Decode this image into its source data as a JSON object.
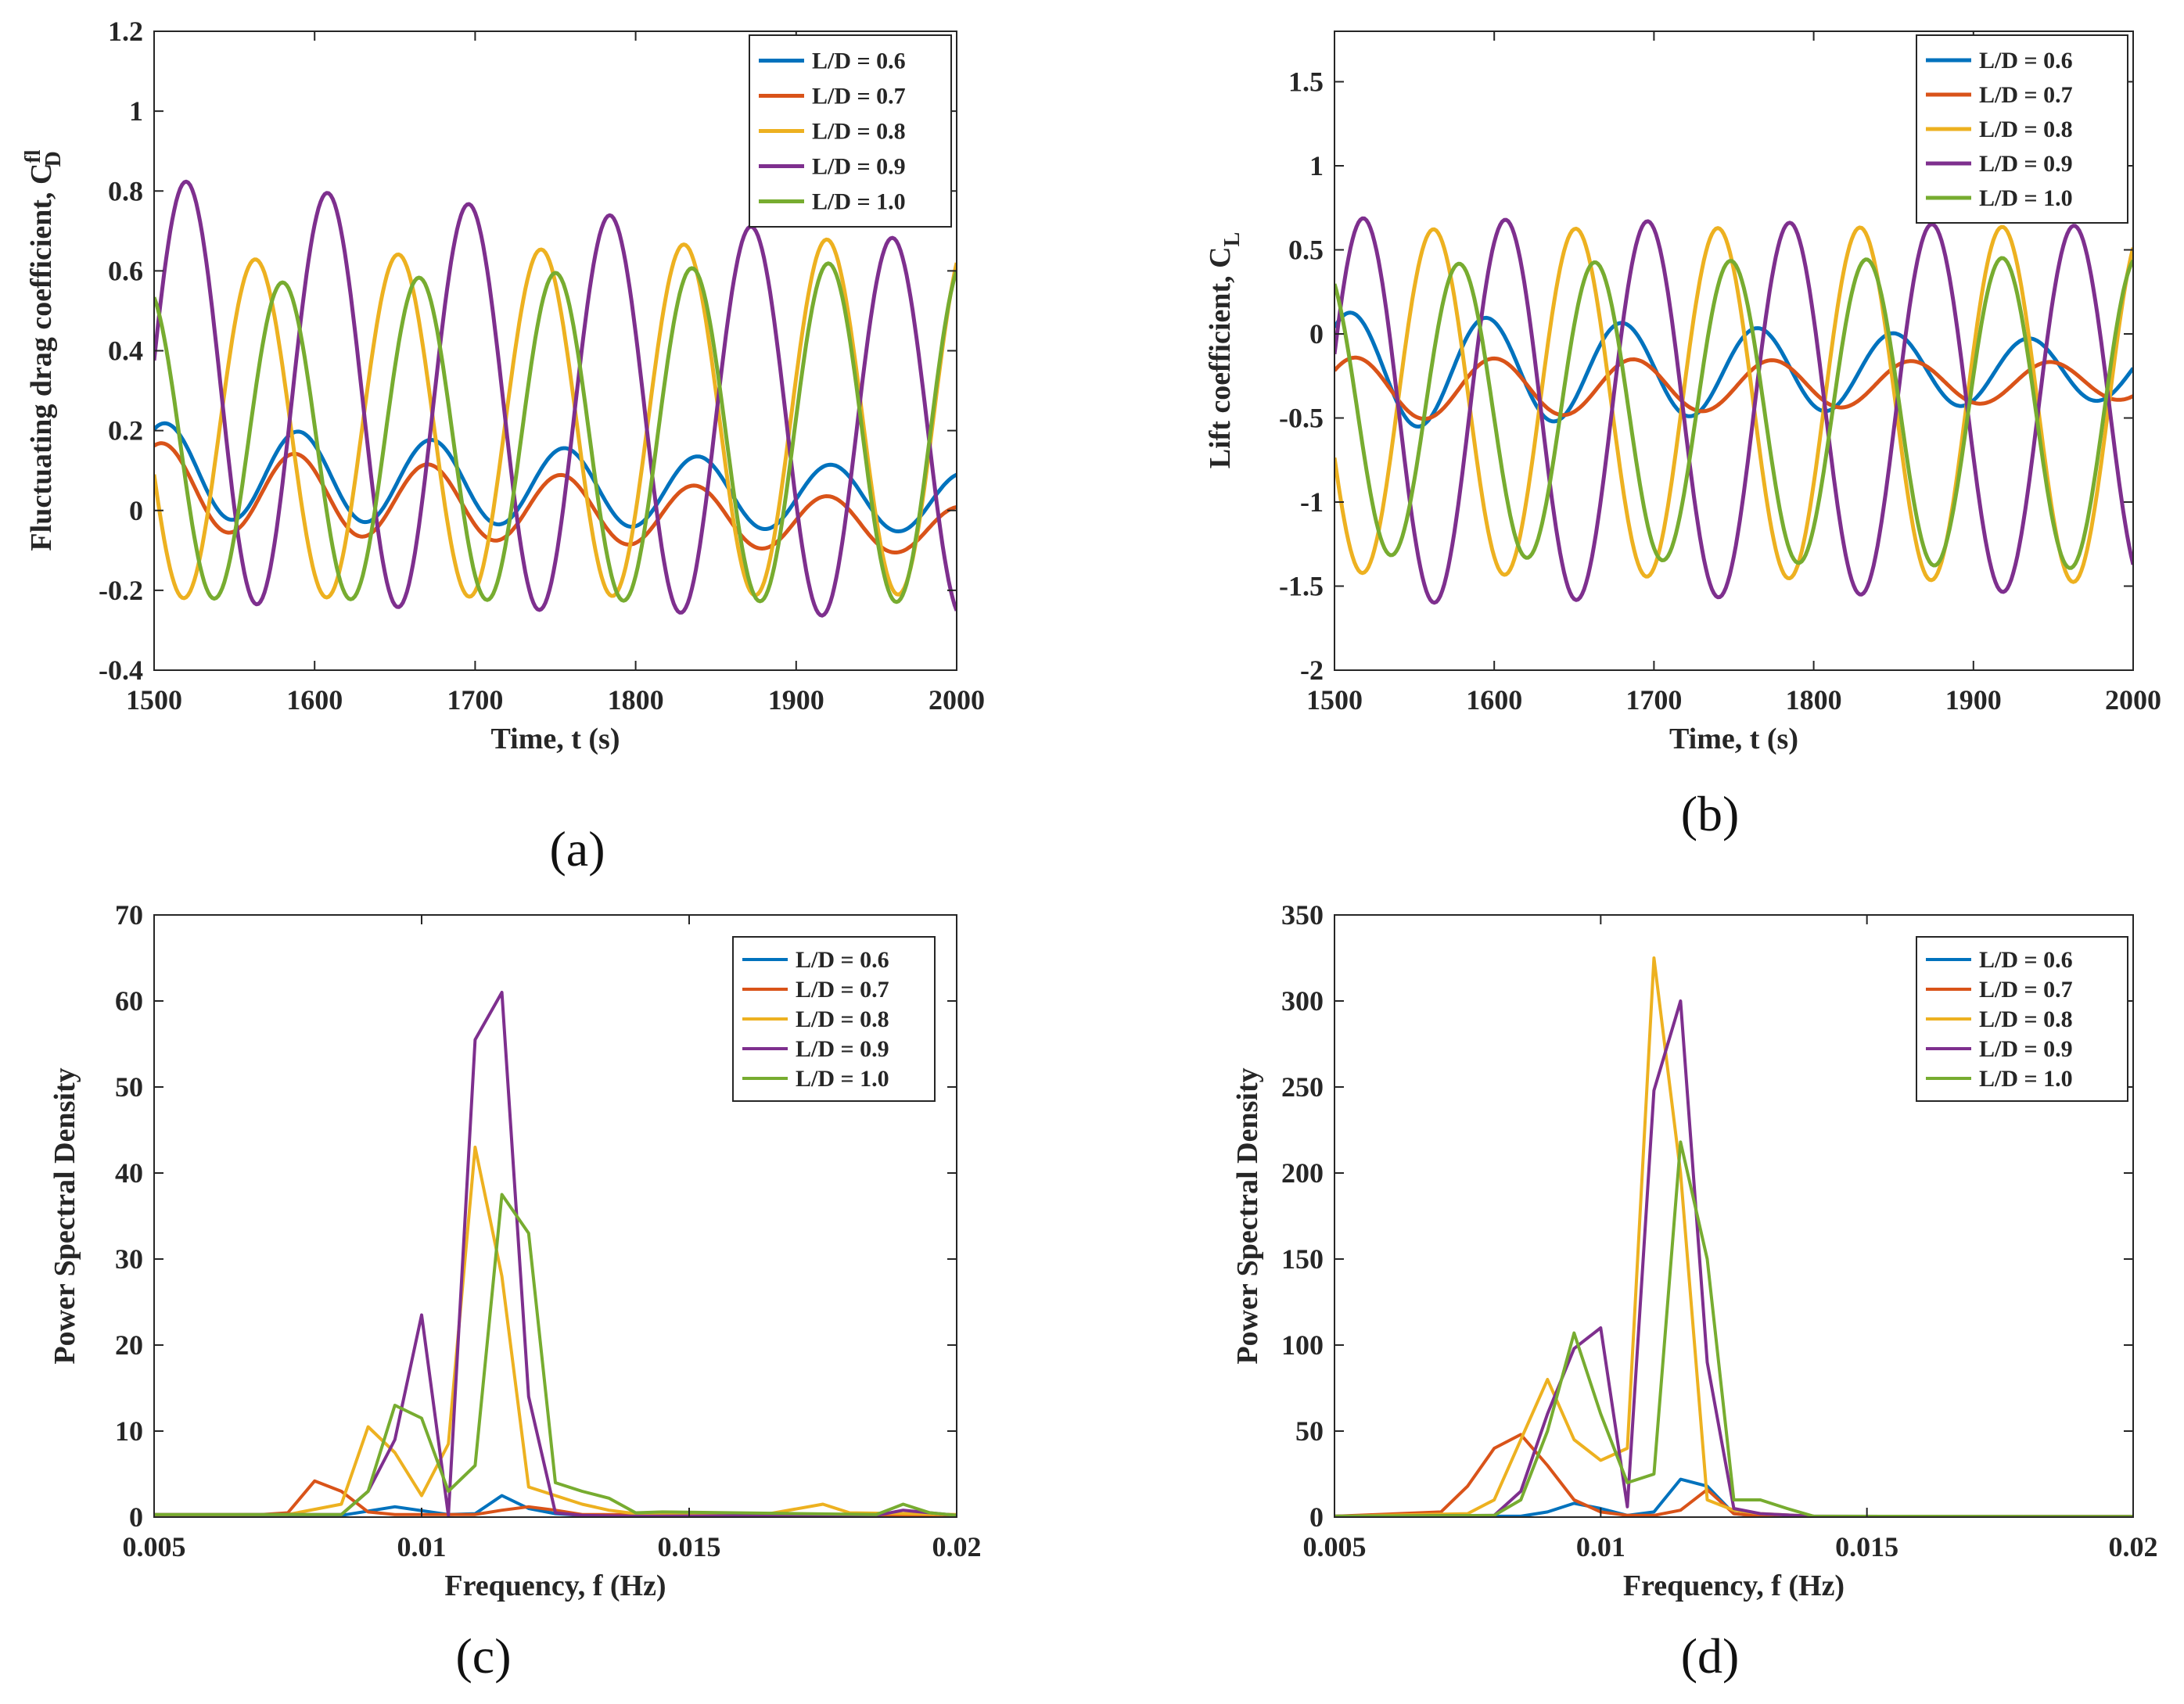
{
  "figure": {
    "series_names": [
      "L/D = 0.6",
      "L/D = 0.7",
      "L/D = 0.8",
      "L/D = 0.9",
      "L/D = 1.0"
    ],
    "series_colors": [
      "#0072BD",
      "#D95319",
      "#EDB120",
      "#7E2F8E",
      "#77AC30"
    ]
  },
  "chart_data": [
    {
      "panel_label": "(a)",
      "type": "line",
      "xlabel": "Time, t (s)",
      "ylabel_main": "Fluctuating drag coefficient, C",
      "ylabel_sup": "fl",
      "ylabel_sub": "D",
      "xlim": [
        1500,
        2000
      ],
      "ylim": [
        -0.4,
        1.2
      ],
      "xticks": [
        1500,
        1600,
        1700,
        1800,
        1900,
        2000
      ],
      "yticks": [
        -0.4,
        -0.2,
        0,
        0.2,
        0.4,
        0.6,
        0.8,
        1,
        1.2
      ],
      "yticklabels": [
        "-0.4",
        "-0.2",
        "0",
        "0.2",
        "0.4",
        "0.6",
        "0.8",
        "1",
        "1.2"
      ],
      "legend_location": "top-right",
      "series": [
        {
          "name": "L/D = 0.6",
          "sinusoid": {
            "period": 83,
            "phase_t": 1507,
            "mean_start": 0.1,
            "mean_end": 0.02,
            "amp_start": 0.12,
            "amp_end": 0.075
          }
        },
        {
          "name": "L/D = 0.7",
          "sinusoid": {
            "period": 83,
            "phase_t": 1505,
            "mean_start": 0.06,
            "mean_end": -0.05,
            "amp_start": 0.11,
            "amp_end": 0.06
          }
        },
        {
          "name": "L/D = 0.8",
          "sinusoid": {
            "period": 89,
            "phase_t": 1563,
            "mean_start": 0.2,
            "mean_end": 0.24,
            "amp_start": 0.42,
            "amp_end": 0.45
          }
        },
        {
          "name": "L/D = 0.9",
          "sinusoid": {
            "period": 88,
            "phase_t": 1520,
            "mean_start": 0.3,
            "mean_end": 0.2,
            "amp_start": 0.53,
            "amp_end": 0.47
          }
        },
        {
          "name": "L/D = 1.0",
          "sinusoid": {
            "period": 85,
            "phase_t": 1580,
            "mean_start": 0.17,
            "mean_end": 0.2,
            "amp_start": 0.39,
            "amp_end": 0.43
          }
        }
      ]
    },
    {
      "panel_label": "(b)",
      "type": "line",
      "xlabel": "Time, t (s)",
      "ylabel_main": "Lift coefficient, C",
      "ylabel_sup": "",
      "ylabel_sub": "L",
      "xlim": [
        1500,
        2000
      ],
      "ylim": [
        -2,
        1.8
      ],
      "xticks": [
        1500,
        1600,
        1700,
        1800,
        1900,
        2000
      ],
      "yticks": [
        -2,
        -1.5,
        -1,
        -0.5,
        0,
        0.5,
        1,
        1.5
      ],
      "yticklabels": [
        "-2",
        "-1.5",
        "-1",
        "-0.5",
        "0",
        "0.5",
        "1",
        "1.5"
      ],
      "legend_location": "top-right",
      "series": [
        {
          "name": "L/D = 0.6",
          "sinusoid": {
            "period": 85,
            "phase_t": 1510,
            "mean_start": -0.22,
            "mean_end": -0.22,
            "amp_start": 0.35,
            "amp_end": 0.17
          }
        },
        {
          "name": "L/D = 0.7",
          "sinusoid": {
            "period": 87,
            "phase_t": 1513,
            "mean_start": -0.33,
            "mean_end": -0.28,
            "amp_start": 0.19,
            "amp_end": 0.11
          }
        },
        {
          "name": "L/D = 0.8",
          "sinusoid": {
            "period": 89,
            "phase_t": 1562,
            "mean_start": -0.4,
            "mean_end": -0.42,
            "amp_start": 1.02,
            "amp_end": 1.06
          }
        },
        {
          "name": "L/D = 0.9",
          "sinusoid": {
            "period": 89,
            "phase_t": 1518,
            "mean_start": -0.46,
            "mean_end": -0.44,
            "amp_start": 1.15,
            "amp_end": 1.08
          }
        },
        {
          "name": "L/D = 1.0",
          "sinusoid": {
            "period": 85,
            "phase_t": 1578,
            "mean_start": -0.45,
            "mean_end": -0.47,
            "amp_start": 0.86,
            "amp_end": 0.93
          }
        }
      ]
    },
    {
      "panel_label": "(c)",
      "type": "line",
      "xlabel": "Frequency, f (Hz)",
      "ylabel_main": "Power Spectral Density",
      "ylabel_sup": "",
      "ylabel_sub": "",
      "xlim": [
        0.005,
        0.02
      ],
      "ylim": [
        0,
        70
      ],
      "xticks": [
        0.005,
        0.01,
        0.015,
        0.02
      ],
      "xticklabels": [
        "0.005",
        "0.01",
        "0.015",
        "0.02"
      ],
      "yticks": [
        0,
        10,
        20,
        30,
        40,
        50,
        60,
        70
      ],
      "yticklabels": [
        "0",
        "10",
        "20",
        "30",
        "40",
        "50",
        "60",
        "70"
      ],
      "legend_location": "top-right",
      "series": [
        {
          "name": "L/D = 0.6",
          "x": [
            0.005,
            0.0085,
            0.0095,
            0.0105,
            0.011,
            0.0115,
            0.012,
            0.0125,
            0.013,
            0.02
          ],
          "y": [
            0.2,
            0.2,
            1.2,
            0.3,
            0.4,
            2.5,
            1.0,
            0.4,
            0.2,
            0.2
          ]
        },
        {
          "name": "L/D = 0.7",
          "x": [
            0.005,
            0.007,
            0.0075,
            0.008,
            0.0085,
            0.009,
            0.0095,
            0.01,
            0.0105,
            0.011,
            0.0115,
            0.012,
            0.0125,
            0.013,
            0.02
          ],
          "y": [
            0.2,
            0.3,
            0.5,
            4.2,
            3.0,
            0.6,
            0.3,
            0.3,
            0.3,
            0.3,
            0.8,
            1.2,
            0.8,
            0.3,
            0.2
          ]
        },
        {
          "name": "L/D = 0.8",
          "x": [
            0.005,
            0.0075,
            0.0085,
            0.009,
            0.0095,
            0.01,
            0.0105,
            0.011,
            0.0115,
            0.012,
            0.0125,
            0.013,
            0.0135,
            0.014,
            0.0165,
            0.0175,
            0.018,
            0.02
          ],
          "y": [
            0.3,
            0.3,
            1.5,
            10.5,
            7.5,
            2.5,
            8.5,
            43.0,
            28.0,
            3.5,
            2.5,
            1.5,
            0.8,
            0.4,
            0.4,
            1.5,
            0.5,
            0.3
          ]
        },
        {
          "name": "L/D = 0.9",
          "x": [
            0.005,
            0.0085,
            0.009,
            0.0095,
            0.01,
            0.0105,
            0.011,
            0.0115,
            0.012,
            0.0125,
            0.013,
            0.014,
            0.0185,
            0.019,
            0.0195,
            0.02
          ],
          "y": [
            0.3,
            0.3,
            3.0,
            9.0,
            23.5,
            0.2,
            55.5,
            61.0,
            14.0,
            0.5,
            0.2,
            0.1,
            0.2,
            0.8,
            0.5,
            0.2
          ]
        },
        {
          "name": "L/D = 1.0",
          "x": [
            0.005,
            0.0085,
            0.009,
            0.0095,
            0.01,
            0.0105,
            0.011,
            0.0115,
            0.012,
            0.0125,
            0.013,
            0.0135,
            0.014,
            0.0145,
            0.0185,
            0.019,
            0.0195,
            0.02
          ],
          "y": [
            0.3,
            0.3,
            3.0,
            13.0,
            11.5,
            3.0,
            6.0,
            37.5,
            33.0,
            4.0,
            3.0,
            2.2,
            0.5,
            0.6,
            0.3,
            1.5,
            0.5,
            0.2
          ]
        }
      ]
    },
    {
      "panel_label": "(d)",
      "type": "line",
      "xlabel": "Frequency, f (Hz)",
      "ylabel_main": "Power Spectral Density",
      "ylabel_sup": "",
      "ylabel_sub": "",
      "xlim": [
        0.005,
        0.02
      ],
      "ylim": [
        0,
        350
      ],
      "xticks": [
        0.005,
        0.01,
        0.015,
        0.02
      ],
      "xticklabels": [
        "0.005",
        "0.01",
        "0.015",
        "0.02"
      ],
      "yticks": [
        0,
        50,
        100,
        150,
        200,
        250,
        300,
        350
      ],
      "yticklabels": [
        "0",
        "50",
        "100",
        "150",
        "200",
        "250",
        "300",
        "350"
      ],
      "legend_location": "top-right",
      "series": [
        {
          "name": "L/D = 0.6",
          "x": [
            0.005,
            0.0085,
            0.009,
            0.0095,
            0.01,
            0.0105,
            0.011,
            0.0115,
            0.012,
            0.0125,
            0.013,
            0.02
          ],
          "y": [
            0.5,
            0.5,
            3.0,
            8.0,
            5.0,
            1.0,
            3.0,
            22.0,
            18.0,
            2.0,
            0.5,
            0.3
          ]
        },
        {
          "name": "L/D = 0.7",
          "x": [
            0.005,
            0.007,
            0.0075,
            0.008,
            0.0085,
            0.009,
            0.0095,
            0.01,
            0.0105,
            0.011,
            0.0115,
            0.012,
            0.0125,
            0.013,
            0.02
          ],
          "y": [
            0.5,
            3.0,
            18.0,
            40.0,
            48.0,
            30.0,
            10.0,
            3.0,
            1.0,
            1.0,
            4.0,
            16.0,
            2.0,
            0.5,
            0.3
          ]
        },
        {
          "name": "L/D = 0.8",
          "x": [
            0.005,
            0.0075,
            0.008,
            0.0085,
            0.009,
            0.0095,
            0.01,
            0.0105,
            0.011,
            0.0115,
            0.012,
            0.0125,
            0.013,
            0.014,
            0.02
          ],
          "y": [
            0.5,
            2.0,
            10.0,
            45.0,
            80.0,
            45.0,
            33.0,
            40.0,
            325.0,
            200.0,
            10.0,
            4.0,
            2.0,
            0.5,
            0.3
          ]
        },
        {
          "name": "L/D = 0.9",
          "x": [
            0.005,
            0.008,
            0.0085,
            0.009,
            0.0095,
            0.01,
            0.0105,
            0.011,
            0.0115,
            0.012,
            0.0125,
            0.013,
            0.014,
            0.02
          ],
          "y": [
            0.5,
            1.0,
            15.0,
            60.0,
            98.0,
            110.0,
            6.0,
            248.0,
            300.0,
            90.0,
            5.0,
            2.0,
            0.5,
            0.3
          ]
        },
        {
          "name": "L/D = 1.0",
          "x": [
            0.005,
            0.008,
            0.0085,
            0.009,
            0.0095,
            0.01,
            0.0105,
            0.011,
            0.0115,
            0.012,
            0.0125,
            0.013,
            0.0135,
            0.014,
            0.02
          ],
          "y": [
            0.5,
            1.0,
            10.0,
            50.0,
            107.0,
            60.0,
            20.0,
            25.0,
            218.0,
            150.0,
            10.0,
            10.0,
            5.0,
            0.5,
            0.3
          ]
        }
      ]
    }
  ]
}
